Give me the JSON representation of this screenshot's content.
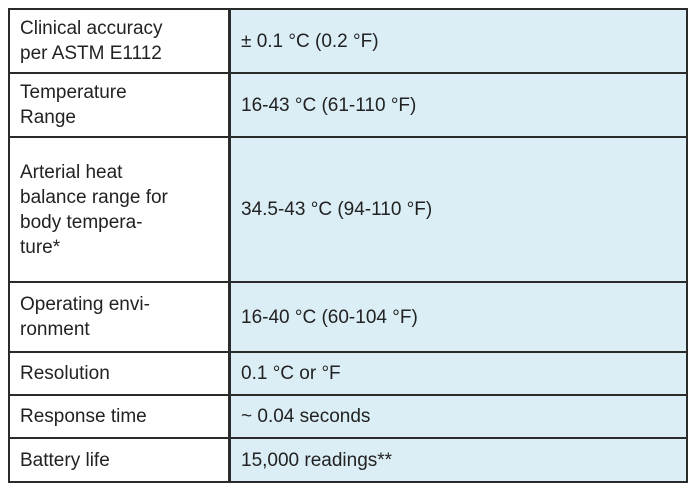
{
  "table": {
    "rows": [
      {
        "label": [
          "Clinical accuracy",
          "per ASTM E1112"
        ],
        "value": "± 0.1 °C (0.2 °F)"
      },
      {
        "label": [
          "Temperature",
          "Range"
        ],
        "value": "16-43 °C (61-110 °F)"
      },
      {
        "label": [
          "Arterial heat",
          "balance range for",
          "body tempera-",
          "ture*"
        ],
        "value": "34.5-43 °C (94-110 °F)"
      },
      {
        "label": [
          "Operating envi-",
          "ronment"
        ],
        "value": "16-40 °C (60-104 °F)"
      },
      {
        "label": [
          "Resolution"
        ],
        "value": "0.1 °C or °F"
      },
      {
        "label": [
          "Response time"
        ],
        "value": "~ 0.04 seconds"
      },
      {
        "label": [
          "Battery life"
        ],
        "value": "15,000 readings**"
      }
    ]
  }
}
